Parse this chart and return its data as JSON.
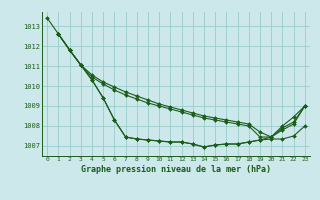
{
  "background_color": "#cce8ea",
  "grid_color": "#99cccc",
  "line_color": "#1a5c1a",
  "title": "Graphe pression niveau de la mer (hPa)",
  "xlim": [
    -0.5,
    23.5
  ],
  "ylim": [
    1006.5,
    1013.7
  ],
  "yticks": [
    1007,
    1008,
    1009,
    1010,
    1011,
    1012,
    1013
  ],
  "xticks": [
    0,
    1,
    2,
    3,
    4,
    5,
    6,
    7,
    8,
    9,
    10,
    11,
    12,
    13,
    14,
    15,
    16,
    17,
    18,
    19,
    20,
    21,
    22,
    23
  ],
  "series": [
    [
      1013.4,
      1012.6,
      1011.8,
      1011.05,
      1010.3,
      1009.4,
      1008.3,
      1007.45,
      1007.35,
      1007.3,
      1007.25,
      1007.2,
      1007.2,
      1007.1,
      1006.95,
      1007.05,
      1007.1,
      1007.1,
      1007.2,
      1007.3,
      1007.45,
      1008.0,
      1008.45,
      1009.0
    ],
    [
      null,
      1012.6,
      1011.8,
      1011.05,
      1010.3,
      1009.4,
      1008.3,
      1007.45,
      1007.35,
      1007.3,
      1007.25,
      1007.2,
      1007.2,
      1007.1,
      1006.95,
      1007.05,
      1007.1,
      1007.1,
      1007.2,
      1007.3,
      1007.35,
      1007.35,
      1007.5,
      1008.0
    ],
    [
      null,
      1012.6,
      1011.8,
      1011.05,
      1010.55,
      1010.2,
      1009.95,
      1009.7,
      1009.5,
      1009.3,
      1009.1,
      1008.95,
      1008.8,
      1008.65,
      1008.5,
      1008.4,
      1008.3,
      1008.2,
      1008.1,
      1007.7,
      1007.45,
      1007.8,
      1008.1,
      1009.0
    ],
    [
      null,
      1012.6,
      1011.8,
      1011.05,
      1010.45,
      1010.1,
      1009.8,
      1009.55,
      1009.35,
      1009.15,
      1009.0,
      1008.85,
      1008.7,
      1008.55,
      1008.4,
      1008.3,
      1008.2,
      1008.1,
      1008.0,
      1007.45,
      1007.45,
      1007.9,
      1008.2,
      1009.0
    ]
  ]
}
